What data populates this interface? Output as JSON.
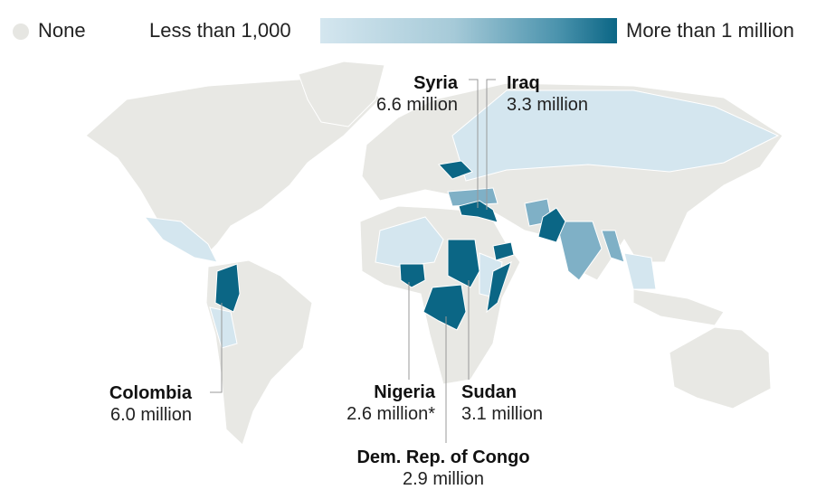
{
  "legend": {
    "none": "None",
    "low": "Less than 1,000",
    "high": "More than 1 million",
    "colors": {
      "none": "#e6e6e2",
      "low": "#d4e6ef",
      "mid": "#7fb0c6",
      "high": "#0b6685"
    }
  },
  "labels": [
    {
      "country": "Syria",
      "value": "6.6 million"
    },
    {
      "country": "Iraq",
      "value": "3.3 million"
    },
    {
      "country": "Colombia",
      "value": "6.0 million"
    },
    {
      "country": "Nigeria",
      "value": "2.6 million*"
    },
    {
      "country": "Sudan",
      "value": "3.1 million"
    },
    {
      "country": "Dem. Rep. of Congo",
      "value": "2.9 million"
    }
  ]
}
